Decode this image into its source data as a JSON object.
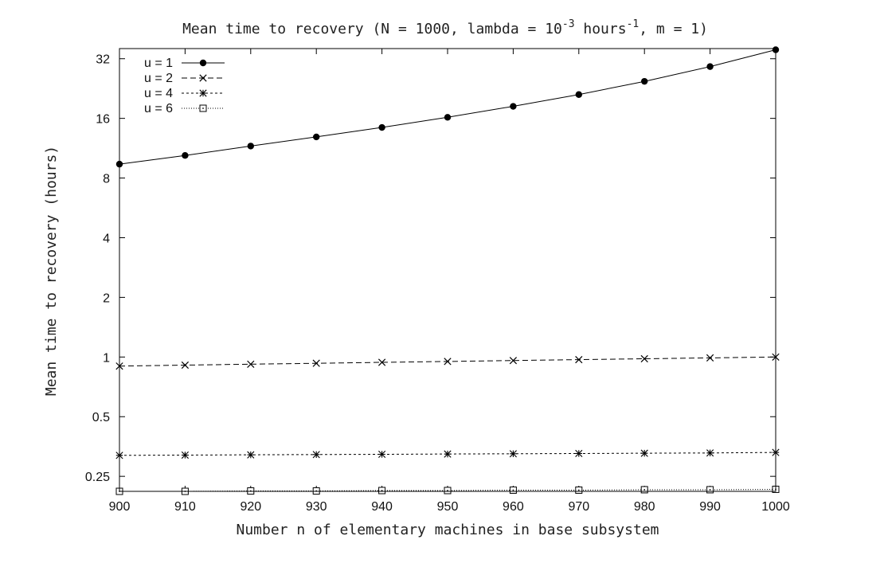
{
  "chart_data": {
    "type": "line",
    "title": {
      "prefix": "Mean time to recovery (N = 1000, lambda = 10",
      "sup1": "-3",
      "middle": " hours",
      "sup2": "-1",
      "suffix": ", m = 1)"
    },
    "xlabel": "Number n of elementary machines in base subsystem",
    "ylabel": "Mean time to recovery (hours)",
    "y_scale": "log2",
    "xlim": [
      900,
      1000
    ],
    "ylim": [
      0.21,
      36
    ],
    "grid": false,
    "legend_position": "top-left",
    "x_ticks": [
      900,
      910,
      920,
      930,
      940,
      950,
      960,
      970,
      980,
      990,
      1000
    ],
    "y_ticks": [
      {
        "value": 0.25,
        "label": "0.25"
      },
      {
        "value": 0.5,
        "label": "0.5"
      },
      {
        "value": 1,
        "label": "1"
      },
      {
        "value": 2,
        "label": "2"
      },
      {
        "value": 4,
        "label": "4"
      },
      {
        "value": 8,
        "label": "8"
      },
      {
        "value": 16,
        "label": "16"
      },
      {
        "value": 32,
        "label": "32"
      }
    ],
    "x": [
      900,
      910,
      920,
      930,
      940,
      950,
      960,
      970,
      980,
      990,
      1000
    ],
    "series": [
      {
        "name": "u = 1",
        "marker": "circle",
        "dash": "",
        "values": [
          9.4,
          10.4,
          11.6,
          12.9,
          14.4,
          16.2,
          18.4,
          21.1,
          24.6,
          29.2,
          35.5
        ]
      },
      {
        "name": "u = 2",
        "marker": "x",
        "dash": "7,4",
        "values": [
          0.9,
          0.91,
          0.92,
          0.93,
          0.94,
          0.95,
          0.96,
          0.97,
          0.98,
          0.99,
          1.0
        ]
      },
      {
        "name": "u = 4",
        "marker": "star",
        "dash": "3,3",
        "values": [
          0.319,
          0.32,
          0.321,
          0.322,
          0.323,
          0.324,
          0.325,
          0.326,
          0.327,
          0.328,
          0.33
        ]
      },
      {
        "name": "u = 6",
        "marker": "square",
        "dash": "1,2",
        "values": [
          0.21,
          0.21,
          0.211,
          0.211,
          0.212,
          0.212,
          0.213,
          0.213,
          0.214,
          0.214,
          0.215
        ]
      }
    ]
  }
}
